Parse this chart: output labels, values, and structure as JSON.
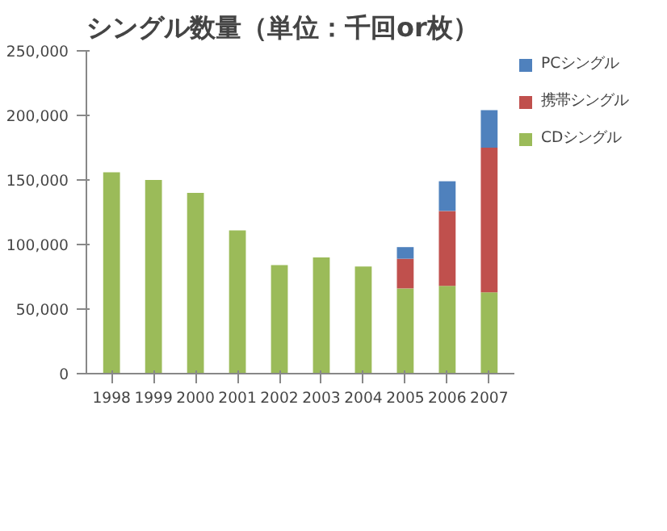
{
  "chart_data": {
    "type": "bar",
    "stacked": true,
    "title": "シングル数量（単位：千回or枚）",
    "categories": [
      "1998",
      "1999",
      "2000",
      "2001",
      "2002",
      "2003",
      "2004",
      "2005",
      "2006",
      "2007"
    ],
    "series": [
      {
        "name": "CDシングル",
        "color": "#9bbb59",
        "values": [
          156000,
          150000,
          140000,
          111000,
          84000,
          90000,
          83000,
          66000,
          68000,
          63000
        ]
      },
      {
        "name": "携帯シングル",
        "color": "#c0504d",
        "values": [
          null,
          null,
          null,
          null,
          null,
          null,
          null,
          23000,
          58000,
          112000
        ]
      },
      {
        "name": "PCシングル",
        "color": "#4f81bd",
        "values": [
          null,
          null,
          null,
          null,
          null,
          null,
          null,
          9000,
          23000,
          29000
        ]
      }
    ],
    "ylim": [
      0,
      250000
    ],
    "yticks": [
      {
        "value": 0,
        "label": "0"
      },
      {
        "value": 50000,
        "label": "50,000"
      },
      {
        "value": 100000,
        "label": "100,000"
      },
      {
        "value": 150000,
        "label": "150,000"
      },
      {
        "value": 200000,
        "label": "200,000"
      },
      {
        "value": 250000,
        "label": "250,000"
      }
    ],
    "grid": false,
    "legend": "top right"
  }
}
